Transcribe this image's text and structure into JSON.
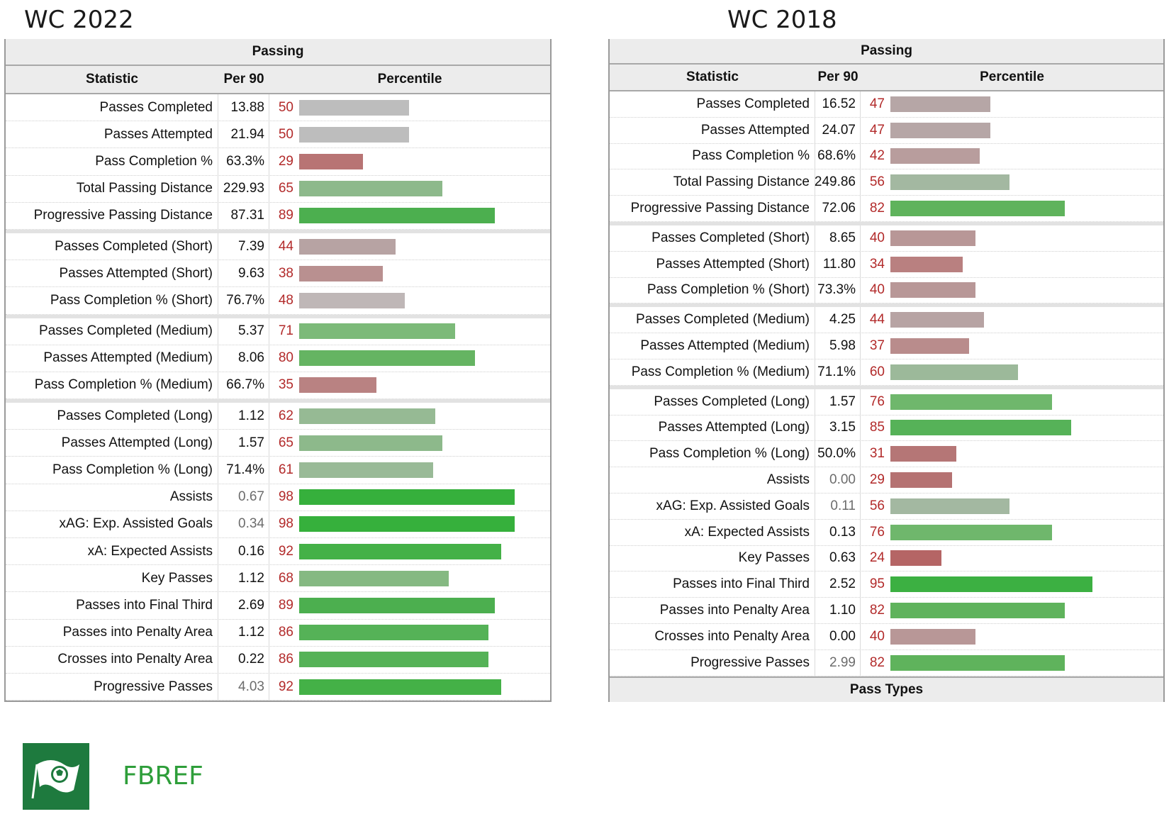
{
  "left": {
    "title": "WC 2022",
    "section": "Passing",
    "columns": {
      "stat": "Statistic",
      "per90": "Per 90",
      "pct": "Percentile"
    },
    "rows": [
      {
        "stat": "Passes Completed",
        "per90": "13.88",
        "pct": 50,
        "color": "#bdbdbd",
        "group_start": false
      },
      {
        "stat": "Passes Attempted",
        "per90": "21.94",
        "pct": 50,
        "color": "#bdbdbd",
        "group_start": false
      },
      {
        "stat": "Pass Completion %",
        "per90": "63.3%",
        "pct": 29,
        "color": "#b87474",
        "group_start": false
      },
      {
        "stat": "Total Passing Distance",
        "per90": "229.93",
        "pct": 65,
        "color": "#8db98b",
        "group_start": false
      },
      {
        "stat": "Progressive Passing Distance",
        "per90": "87.31",
        "pct": 89,
        "color": "#4caf4f",
        "group_start": false
      },
      {
        "stat": "Passes Completed (Short)",
        "per90": "7.39",
        "pct": 44,
        "color": "#b7a3a3",
        "group_start": true
      },
      {
        "stat": "Passes Attempted (Short)",
        "per90": "9.63",
        "pct": 38,
        "color": "#b99090",
        "group_start": false
      },
      {
        "stat": "Pass Completion % (Short)",
        "per90": "76.7%",
        "pct": 48,
        "color": "#bfb7b7",
        "group_start": false
      },
      {
        "stat": "Passes Completed (Medium)",
        "per90": "5.37",
        "pct": 71,
        "color": "#7cba79",
        "group_start": true
      },
      {
        "stat": "Passes Attempted (Medium)",
        "per90": "8.06",
        "pct": 80,
        "color": "#65b462",
        "group_start": false
      },
      {
        "stat": "Pass Completion % (Medium)",
        "per90": "66.7%",
        "pct": 35,
        "color": "#b98282",
        "group_start": false
      },
      {
        "stat": "Passes Completed (Long)",
        "per90": "1.12",
        "pct": 62,
        "color": "#96ba94",
        "group_start": true
      },
      {
        "stat": "Passes Attempted (Long)",
        "per90": "1.57",
        "pct": 65,
        "color": "#8db98b",
        "group_start": false
      },
      {
        "stat": "Pass Completion % (Long)",
        "per90": "71.4%",
        "pct": 61,
        "color": "#99ba97",
        "group_start": false
      },
      {
        "stat": "Assists",
        "per90": "0.67",
        "pct": 98,
        "color": "#36b03c",
        "group_start": false,
        "muted": true
      },
      {
        "stat": "xAG: Exp. Assisted Goals",
        "per90": "0.34",
        "pct": 98,
        "color": "#36b03c",
        "group_start": false,
        "muted": true
      },
      {
        "stat": "xA: Expected Assists",
        "per90": "0.16",
        "pct": 92,
        "color": "#44b147",
        "group_start": false
      },
      {
        "stat": "Key Passes",
        "per90": "1.12",
        "pct": 68,
        "color": "#85b982",
        "group_start": false
      },
      {
        "stat": "Passes into Final Third",
        "per90": "2.69",
        "pct": 89,
        "color": "#4caf4f",
        "group_start": false
      },
      {
        "stat": "Passes into Penalty Area",
        "per90": "1.12",
        "pct": 86,
        "color": "#55b257",
        "group_start": false
      },
      {
        "stat": "Crosses into Penalty Area",
        "per90": "0.22",
        "pct": 86,
        "color": "#55b257",
        "group_start": false
      },
      {
        "stat": "Progressive Passes",
        "per90": "4.03",
        "pct": 92,
        "color": "#44b147",
        "group_start": false,
        "muted": true
      }
    ]
  },
  "right": {
    "title": "WC 2018",
    "section": "Passing",
    "footer_section": "Pass Types",
    "columns": {
      "stat": "Statistic",
      "per90": "Per 90",
      "pct": "Percentile"
    },
    "rows": [
      {
        "stat": "Passes Completed",
        "per90": "16.52",
        "pct": 47,
        "color": "#b6a6a6",
        "group_start": false
      },
      {
        "stat": "Passes Attempted",
        "per90": "24.07",
        "pct": 47,
        "color": "#b6a6a6",
        "group_start": false
      },
      {
        "stat": "Pass Completion %",
        "per90": "68.6%",
        "pct": 42,
        "color": "#b89d9d",
        "group_start": false
      },
      {
        "stat": "Total Passing Distance",
        "per90": "249.86",
        "pct": 56,
        "color": "#a3b8a1",
        "group_start": false
      },
      {
        "stat": "Progressive Passing Distance",
        "per90": "72.06",
        "pct": 82,
        "color": "#5fb35c",
        "group_start": false
      },
      {
        "stat": "Passes Completed (Short)",
        "per90": "8.65",
        "pct": 40,
        "color": "#b89797",
        "group_start": true
      },
      {
        "stat": "Passes Attempted (Short)",
        "per90": "11.80",
        "pct": 34,
        "color": "#b98080",
        "group_start": false
      },
      {
        "stat": "Pass Completion % (Short)",
        "per90": "73.3%",
        "pct": 40,
        "color": "#b89797",
        "group_start": false
      },
      {
        "stat": "Passes Completed (Medium)",
        "per90": "4.25",
        "pct": 44,
        "color": "#b7a3a3",
        "group_start": true
      },
      {
        "stat": "Passes Attempted (Medium)",
        "per90": "5.98",
        "pct": 37,
        "color": "#b98c8c",
        "group_start": false
      },
      {
        "stat": "Pass Completion % (Medium)",
        "per90": "71.1%",
        "pct": 60,
        "color": "#9cb99a",
        "group_start": false
      },
      {
        "stat": "Passes Completed (Long)",
        "per90": "1.57",
        "pct": 76,
        "color": "#6fb76c",
        "group_start": true
      },
      {
        "stat": "Passes Attempted (Long)",
        "per90": "3.15",
        "pct": 85,
        "color": "#56b258",
        "group_start": false
      },
      {
        "stat": "Pass Completion % (Long)",
        "per90": "50.0%",
        "pct": 31,
        "color": "#b57676",
        "group_start": false
      },
      {
        "stat": "Assists",
        "per90": "0.00",
        "pct": 29,
        "color": "#b57272",
        "group_start": false,
        "muted": true
      },
      {
        "stat": "xAG: Exp. Assisted Goals",
        "per90": "0.11",
        "pct": 56,
        "color": "#a3b8a1",
        "group_start": false,
        "muted": true
      },
      {
        "stat": "xA: Expected Assists",
        "per90": "0.13",
        "pct": 76,
        "color": "#6fb76c",
        "group_start": false
      },
      {
        "stat": "Key Passes",
        "per90": "0.63",
        "pct": 24,
        "color": "#b56565",
        "group_start": false
      },
      {
        "stat": "Passes into Final Third",
        "per90": "2.52",
        "pct": 95,
        "color": "#3cb042",
        "group_start": false
      },
      {
        "stat": "Passes into Penalty Area",
        "per90": "1.10",
        "pct": 82,
        "color": "#5fb35c",
        "group_start": false
      },
      {
        "stat": "Crosses into Penalty Area",
        "per90": "0.00",
        "pct": 40,
        "color": "#b89797",
        "group_start": false
      },
      {
        "stat": "Progressive Passes",
        "per90": "2.99",
        "pct": 82,
        "color": "#5fb35c",
        "group_start": false,
        "muted": true
      }
    ]
  },
  "brand": {
    "name": "FBREF",
    "color": "#2e9e3a",
    "logo_color": "#1e7a3e",
    "logo_icon": "soccer-flag-icon"
  }
}
